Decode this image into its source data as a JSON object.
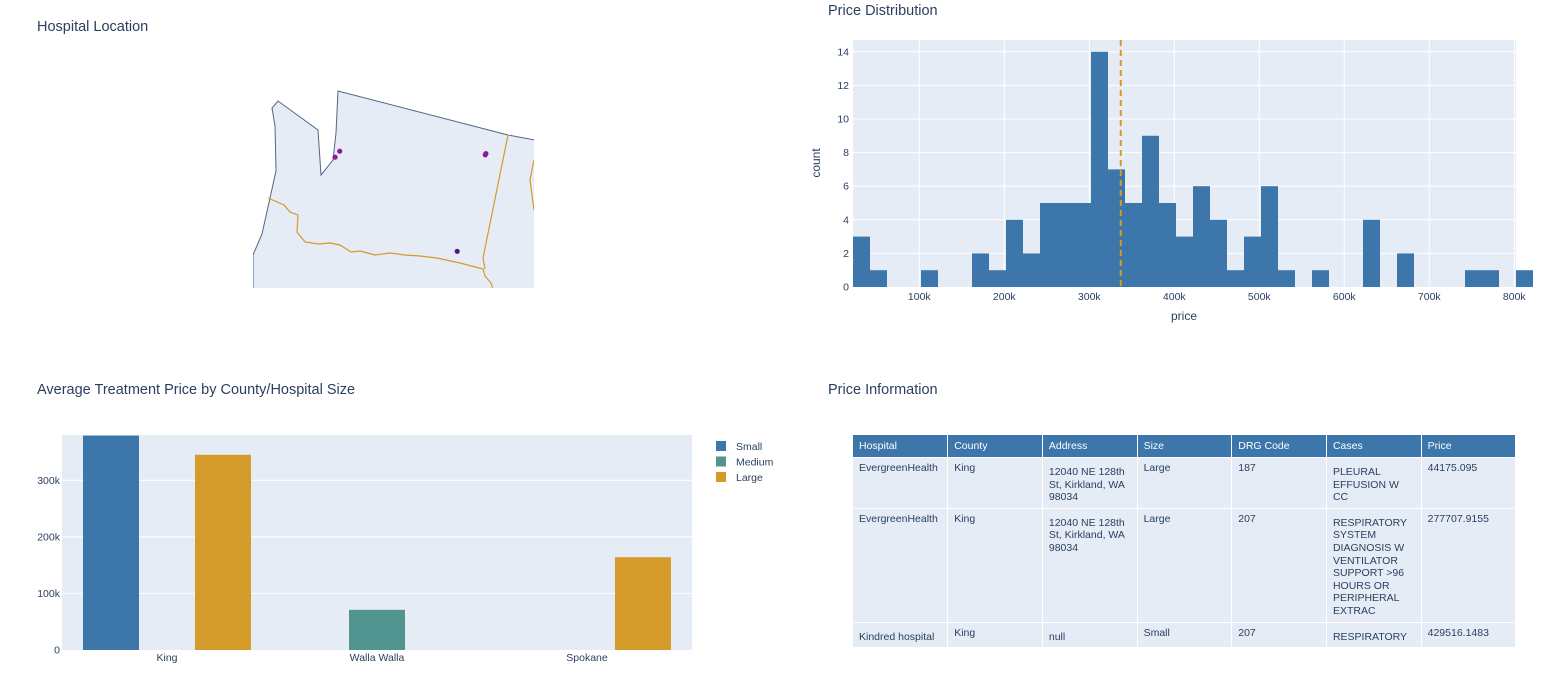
{
  "titles": {
    "map": "Hospital Location",
    "histogram": "Price Distribution",
    "bar": "Average Treatment Price by County/Hospital Size",
    "table": "Price Information"
  },
  "colors": {
    "blue": "#3c76aa",
    "teal": "#52948f",
    "gold": "#d49a2a",
    "plot_bg": "#e5ecf6",
    "map_marker": "#8a1a9b",
    "map_marker_dark": "#4b1a8a"
  },
  "chart_data": [
    {
      "type": "scatter",
      "subtype": "geo-map",
      "title": "Hospital Location",
      "region": "Washington State",
      "points": [
        {
          "lon": -122.18,
          "lat": 47.72
        },
        {
          "lon": -122.33,
          "lat": 47.62
        },
        {
          "lon": -117.42,
          "lat": 47.66
        },
        {
          "lon": -117.4,
          "lat": 47.68
        },
        {
          "lon": -118.34,
          "lat": 46.06
        }
      ]
    },
    {
      "type": "bar",
      "subtype": "histogram",
      "title": "Price Distribution",
      "xlabel": "price",
      "ylabel": "count",
      "xlim": [
        22000,
        802000
      ],
      "ylim": [
        0,
        14.7
      ],
      "bin_width": 20000,
      "bin_start": 22000,
      "counts": [
        3,
        1,
        0,
        0,
        1,
        0,
        0,
        2,
        1,
        4,
        2,
        5,
        5,
        5,
        14,
        7,
        5,
        9,
        5,
        3,
        6,
        4,
        1,
        3,
        6,
        1,
        0,
        1,
        0,
        0,
        4,
        0,
        2,
        0,
        0,
        0,
        1,
        1,
        0,
        1
      ],
      "x_tick_values": [
        100000,
        200000,
        300000,
        400000,
        500000,
        600000,
        700000,
        800000
      ],
      "x_tick_labels": [
        "100k",
        "200k",
        "300k",
        "400k",
        "500k",
        "600k",
        "700k",
        "800k"
      ],
      "y_tick_values": [
        0,
        2,
        4,
        6,
        8,
        10,
        12,
        14
      ],
      "y_tick_labels": [
        "0",
        "2",
        "4",
        "6",
        "8",
        "10",
        "12",
        "14"
      ],
      "mean_line": 337000,
      "grid": true
    },
    {
      "type": "bar",
      "title": "Average Treatment Price by County/Hospital Size",
      "categories": [
        "King",
        "Walla Walla",
        "Spokane"
      ],
      "series": [
        {
          "name": "Small",
          "values": [
            379000,
            null,
            null
          ]
        },
        {
          "name": "Medium",
          "values": [
            null,
            71000,
            null
          ]
        },
        {
          "name": "Large",
          "values": [
            345000,
            null,
            164000
          ]
        }
      ],
      "ylim": [
        0,
        380000
      ],
      "y_tick_values": [
        0,
        100000,
        200000,
        300000
      ],
      "y_tick_labels": [
        "0",
        "100k",
        "200k",
        "300k"
      ],
      "legend": "right",
      "grid": true
    }
  ],
  "table": {
    "headers": [
      "Hospital",
      "County",
      "Address",
      "Size",
      "DRG Code",
      "Cases",
      "Price"
    ],
    "rows": [
      [
        "EvergreenHealth",
        "King",
        "12040 NE 128th St, Kirkland, WA 98034",
        "Large",
        "187",
        "PLEURAL EFFUSION W CC",
        "44175.095"
      ],
      [
        "EvergreenHealth",
        "King",
        "12040 NE 128th St, Kirkland, WA 98034",
        "Large",
        "207",
        "RESPIRATORY SYSTEM DIAGNOSIS W VENTILATOR SUPPORT >96 HOURS OR PERIPHERAL EXTRAC",
        "277707.9155"
      ],
      [
        "Kindred hospital",
        "King",
        "null",
        "Small",
        "207",
        "RESPIRATORY",
        "429516.1483"
      ]
    ]
  }
}
